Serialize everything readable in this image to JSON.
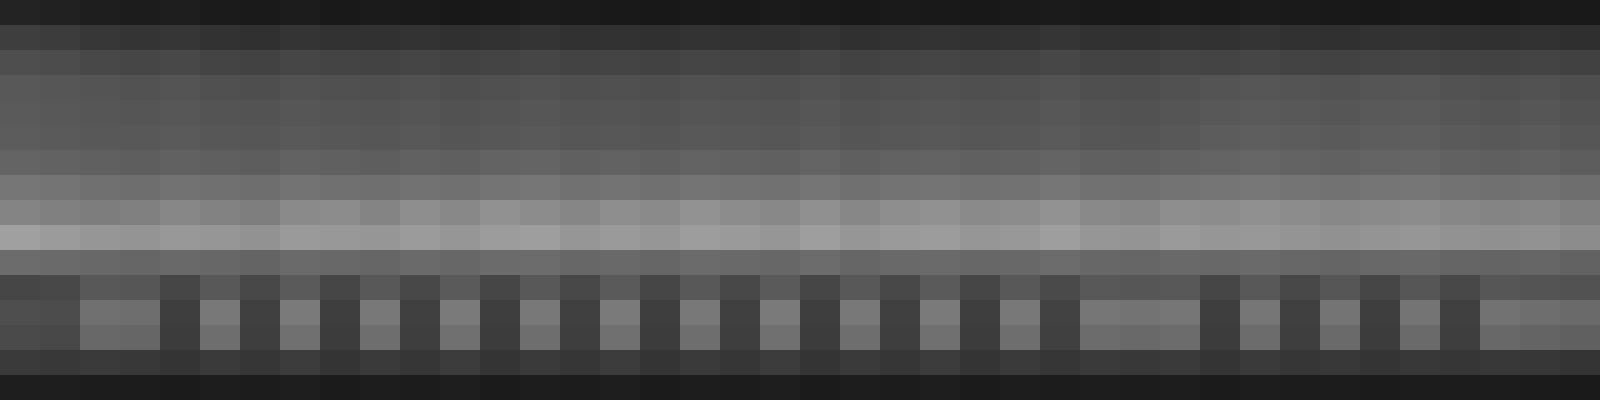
{
  "chart_data": {
    "type": "heatmap",
    "tick_labels": false,
    "color_range": [
      0,
      255
    ],
    "cells": [
      [
        35,
        33,
        30,
        28,
        30,
        27,
        26,
        28,
        25,
        27,
        26,
        24,
        25,
        27,
        26,
        25,
        24,
        26,
        25,
        27,
        25,
        24,
        26,
        25,
        24,
        26,
        27,
        25,
        24,
        26,
        25,
        27,
        26,
        25,
        24,
        26,
        25,
        24,
        26,
        25
      ],
      [
        62,
        60,
        55,
        52,
        54,
        50,
        48,
        52,
        50,
        49,
        51,
        48,
        50,
        52,
        49,
        50,
        48,
        51,
        50,
        49,
        52,
        48,
        50,
        51,
        49,
        50,
        53,
        49,
        48,
        51,
        50,
        52,
        49,
        48,
        50,
        51,
        49,
        48,
        50,
        47
      ],
      [
        78,
        76,
        72,
        70,
        72,
        68,
        66,
        70,
        68,
        67,
        69,
        66,
        68,
        70,
        67,
        68,
        66,
        69,
        68,
        67,
        70,
        66,
        68,
        69,
        67,
        68,
        71,
        67,
        66,
        69,
        68,
        70,
        67,
        66,
        68,
        69,
        67,
        66,
        68,
        65
      ],
      [
        88,
        86,
        84,
        82,
        84,
        80,
        78,
        82,
        80,
        79,
        81,
        78,
        80,
        82,
        79,
        80,
        78,
        81,
        80,
        79,
        82,
        78,
        80,
        81,
        79,
        80,
        83,
        79,
        78,
        81,
        84,
        86,
        84,
        82,
        85,
        86,
        82,
        80,
        82,
        78
      ],
      [
        90,
        88,
        86,
        85,
        87,
        84,
        83,
        86,
        84,
        83,
        85,
        82,
        84,
        86,
        83,
        84,
        82,
        85,
        84,
        83,
        86,
        82,
        84,
        85,
        83,
        84,
        87,
        83,
        82,
        85,
        88,
        90,
        88,
        86,
        89,
        90,
        86,
        84,
        86,
        82
      ],
      [
        92,
        90,
        88,
        88,
        90,
        87,
        86,
        89,
        87,
        86,
        88,
        85,
        87,
        89,
        86,
        87,
        85,
        88,
        87,
        86,
        89,
        85,
        87,
        88,
        86,
        87,
        90,
        86,
        85,
        88,
        92,
        94,
        92,
        90,
        93,
        94,
        90,
        88,
        90,
        86
      ],
      [
        100,
        98,
        96,
        94,
        97,
        95,
        93,
        98,
        96,
        94,
        97,
        95,
        99,
        100,
        96,
        98,
        95,
        99,
        97,
        96,
        100,
        95,
        98,
        99,
        96,
        97,
        100,
        96,
        95,
        98,
        100,
        102,
        99,
        97,
        100,
        101,
        97,
        95,
        97,
        93
      ],
      [
        118,
        116,
        112,
        110,
        114,
        112,
        110,
        115,
        112,
        111,
        114,
        112,
        116,
        118,
        113,
        115,
        112,
        116,
        114,
        113,
        117,
        112,
        115,
        116,
        113,
        114,
        118,
        113,
        112,
        115,
        117,
        119,
        116,
        114,
        117,
        118,
        114,
        112,
        114,
        110
      ],
      [
        132,
        128,
        125,
        128,
        135,
        130,
        126,
        138,
        140,
        132,
        142,
        136,
        145,
        140,
        134,
        142,
        138,
        146,
        140,
        136,
        144,
        135,
        142,
        145,
        138,
        140,
        146,
        137,
        134,
        142,
        140,
        144,
        140,
        136,
        138,
        140,
        135,
        132,
        134,
        128
      ],
      [
        160,
        155,
        150,
        148,
        152,
        150,
        146,
        154,
        152,
        150,
        155,
        150,
        156,
        158,
        150,
        154,
        150,
        157,
        154,
        150,
        158,
        150,
        154,
        156,
        150,
        152,
        158,
        150,
        148,
        154,
        150,
        152,
        148,
        145,
        148,
        150,
        146,
        144,
        146,
        140
      ],
      [
        108,
        106,
        104,
        102,
        105,
        103,
        100,
        106,
        104,
        102,
        106,
        103,
        107,
        108,
        103,
        105,
        102,
        107,
        105,
        103,
        108,
        102,
        105,
        106,
        103,
        104,
        108,
        103,
        102,
        105,
        104,
        106,
        103,
        101,
        104,
        105,
        101,
        100,
        102,
        98
      ],
      [
        70,
        72,
        88,
        86,
        70,
        88,
        72,
        90,
        70,
        88,
        72,
        90,
        70,
        88,
        72,
        90,
        70,
        88,
        72,
        90,
        70,
        88,
        72,
        90,
        70,
        88,
        74,
        88,
        86,
        88,
        70,
        88,
        72,
        86,
        70,
        86,
        72,
        86,
        84,
        82
      ],
      [
        78,
        76,
        112,
        110,
        62,
        120,
        64,
        122,
        62,
        120,
        64,
        122,
        62,
        120,
        64,
        122,
        62,
        120,
        64,
        122,
        62,
        120,
        64,
        122,
        62,
        120,
        66,
        118,
        115,
        118,
        62,
        118,
        64,
        116,
        62,
        116,
        64,
        114,
        110,
        106
      ],
      [
        74,
        72,
        104,
        102,
        60,
        110,
        62,
        112,
        60,
        110,
        62,
        112,
        60,
        110,
        62,
        112,
        60,
        110,
        62,
        112,
        60,
        110,
        62,
        112,
        60,
        110,
        64,
        108,
        105,
        108,
        60,
        108,
        62,
        106,
        60,
        106,
        62,
        104,
        100,
        96
      ],
      [
        58,
        56,
        58,
        56,
        52,
        58,
        54,
        60,
        52,
        58,
        54,
        60,
        52,
        58,
        54,
        60,
        52,
        58,
        54,
        60,
        52,
        58,
        54,
        60,
        52,
        58,
        54,
        58,
        56,
        58,
        52,
        58,
        54,
        56,
        52,
        56,
        54,
        56,
        55,
        52
      ],
      [
        30,
        30,
        28,
        28,
        27,
        29,
        28,
        30,
        27,
        29,
        28,
        30,
        27,
        29,
        28,
        30,
        27,
        29,
        28,
        30,
        27,
        29,
        28,
        30,
        27,
        29,
        28,
        29,
        28,
        29,
        27,
        29,
        28,
        28,
        27,
        28,
        28,
        28,
        27,
        26
      ]
    ]
  }
}
